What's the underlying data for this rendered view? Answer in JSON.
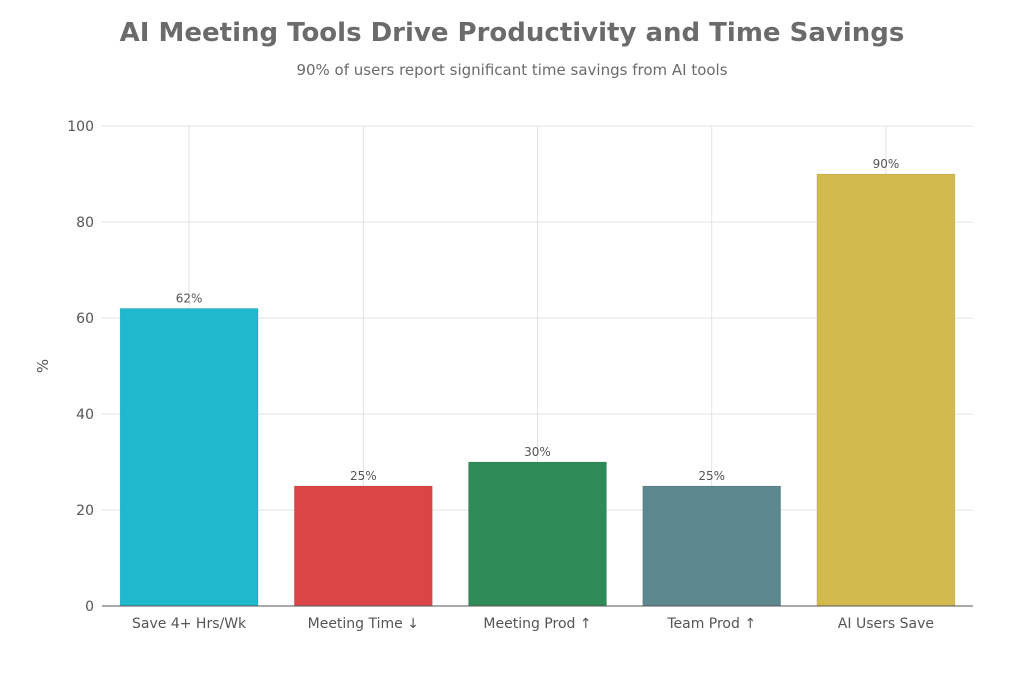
{
  "title": "AI Meeting Tools Drive Productivity and Time Savings",
  "subtitle": "90% of users report significant time savings from AI tools",
  "chart_data": {
    "type": "bar",
    "categories": [
      "Save 4+ Hrs/Wk",
      "Meeting Time ↓",
      "Meeting Prod ↑",
      "Team Prod ↑",
      "AI Users Save"
    ],
    "values": [
      62,
      25,
      30,
      25,
      90
    ],
    "data_labels": [
      "62%",
      "25%",
      "30%",
      "25%",
      "90%"
    ],
    "colors": [
      "#1fb8cd",
      "#db4545",
      "#2e8b57",
      "#5d878f",
      "#d2ba4c"
    ],
    "xlabel": "",
    "ylabel": "%",
    "ylim": [
      0,
      100
    ],
    "yticks": [
      0,
      20,
      40,
      60,
      80,
      100
    ],
    "grid": true,
    "legend": "none"
  }
}
